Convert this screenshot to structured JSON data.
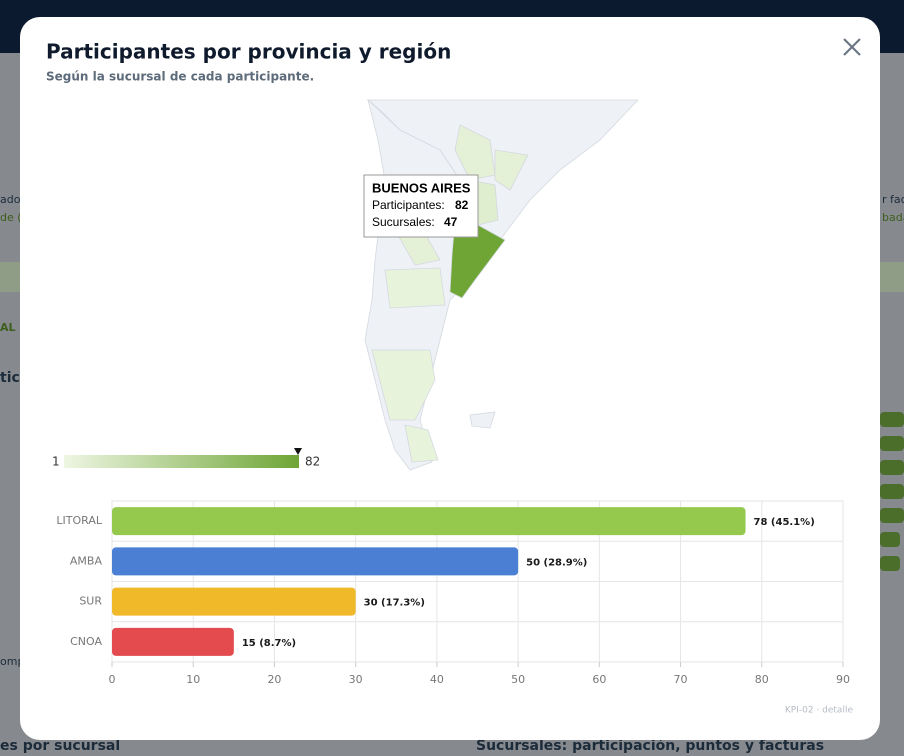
{
  "background": {
    "fragments": [
      "ados",
      "de (",
      "AL",
      "ticu",
      "omp",
      "r fac",
      "bada"
    ],
    "left_heading": "es por sucursal",
    "right_heading": "Sucursales: participación, puntos y facturas"
  },
  "modal": {
    "title": "Participantes por provincia y región",
    "subtitle": "Según la sucursal de cada participante.",
    "tooltip": {
      "name": "BUENOS AIRES",
      "participants_label": "Participantes:",
      "participants": 82,
      "branches_label": "Sucursales:",
      "branches": 47
    },
    "scale": {
      "min": 1,
      "max": 82
    },
    "footer": "KPI-02 · detalle"
  },
  "chart_data": {
    "type": "bar",
    "orientation": "horizontal",
    "categories": [
      "LITORAL",
      "AMBA",
      "SUR",
      "CNOA"
    ],
    "series": [
      {
        "name": "Participantes",
        "values": [
          78,
          50,
          30,
          15
        ],
        "value_labels": [
          "78 (45.1%)",
          "50 (28.9%)",
          "30 (17.3%)",
          "15 (8.7%)"
        ],
        "colors": [
          "#94c94e",
          "#4a7fd4",
          "#f0b92a",
          "#e34b4f"
        ]
      }
    ],
    "xlim": [
      0,
      90
    ],
    "xticks": [
      0,
      10,
      20,
      30,
      40,
      50,
      60,
      70,
      80,
      90
    ],
    "grid": true
  }
}
